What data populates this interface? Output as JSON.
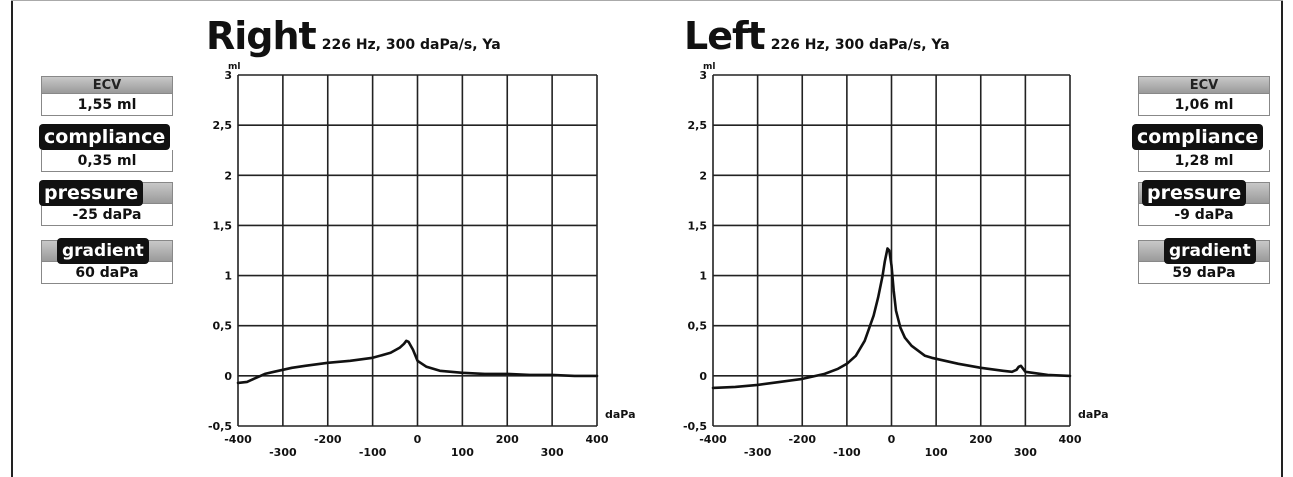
{
  "colors": {
    "line": "#111111",
    "grid": "#222222",
    "pill_bg": "#111111",
    "header_bg": "#b0b0b0"
  },
  "panels": {
    "right_ear": {
      "ecv_label": "ECV",
      "ecv_value": "1,55 ml",
      "compliance_label": "compliance",
      "compliance_value": "0,35 ml",
      "pressure_label": "pressure",
      "pressure_value": "-25 daPa",
      "gradient_label": "gradient",
      "gradient_value": "60 daPa"
    },
    "left_ear": {
      "ecv_label": "ECV",
      "ecv_value": "1,06 ml",
      "compliance_label": "compliance",
      "compliance_value": "1,28 ml",
      "pressure_label": "pressure",
      "pressure_value": "-9 daPa",
      "gradient_label": "gradient",
      "gradient_value": "59 daPa"
    }
  },
  "chart_data": [
    {
      "type": "line",
      "title": "Right",
      "subtitle": "226 Hz, 300 daPa/s, Ya",
      "xlabel": "daPa",
      "ylabel": "ml",
      "xlim": [
        -400,
        400
      ],
      "ylim": [
        -0.5,
        3
      ],
      "x_ticks_top": [
        "-400",
        "-200",
        "0",
        "200",
        "400"
      ],
      "x_ticks_bottom": [
        "-300",
        "-100",
        "100",
        "300"
      ],
      "y_ticks": [
        "3",
        "2,5",
        "2",
        "1,5",
        "1",
        "0,5",
        "0",
        "-0,5"
      ],
      "grid": true,
      "series": [
        {
          "x": [
            -400,
            -380,
            -360,
            -340,
            -320,
            -300,
            -280,
            -250,
            -200,
            -150,
            -100,
            -60,
            -40,
            -30,
            -25,
            -20,
            -10,
            0,
            20,
            50,
            100,
            150,
            200,
            250,
            300,
            350,
            400
          ],
          "values": [
            -0.07,
            -0.06,
            -0.02,
            0.02,
            0.04,
            0.06,
            0.08,
            0.1,
            0.13,
            0.15,
            0.18,
            0.23,
            0.28,
            0.32,
            0.35,
            0.34,
            0.26,
            0.15,
            0.09,
            0.05,
            0.03,
            0.02,
            0.02,
            0.01,
            0.01,
            0.0,
            0.0
          ]
        }
      ]
    },
    {
      "type": "line",
      "title": "Left",
      "subtitle": "226 Hz, 300 daPa/s, Ya",
      "xlabel": "daPa",
      "ylabel": "ml",
      "xlim": [
        -400,
        400
      ],
      "ylim": [
        -0.5,
        3
      ],
      "x_ticks_top": [
        "-400",
        "-200",
        "0",
        "200",
        "400"
      ],
      "x_ticks_bottom": [
        "-300",
        "-100",
        "100",
        "300"
      ],
      "y_ticks": [
        "3",
        "2,5",
        "2",
        "1,5",
        "1",
        "0,5",
        "0",
        "-0,5"
      ],
      "grid": true,
      "series": [
        {
          "x": [
            -400,
            -350,
            -300,
            -250,
            -200,
            -150,
            -120,
            -100,
            -80,
            -60,
            -40,
            -30,
            -20,
            -15,
            -9,
            -5,
            0,
            5,
            10,
            20,
            30,
            45,
            60,
            75,
            90,
            110,
            150,
            200,
            250,
            270,
            280,
            285,
            290,
            300,
            350,
            400
          ],
          "values": [
            -0.12,
            -0.11,
            -0.09,
            -0.06,
            -0.03,
            0.02,
            0.07,
            0.12,
            0.2,
            0.35,
            0.6,
            0.78,
            1.0,
            1.14,
            1.27,
            1.25,
            1.1,
            0.85,
            0.65,
            0.48,
            0.38,
            0.3,
            0.25,
            0.2,
            0.18,
            0.16,
            0.12,
            0.08,
            0.05,
            0.04,
            0.06,
            0.09,
            0.1,
            0.04,
            0.01,
            0.0
          ]
        }
      ]
    }
  ]
}
